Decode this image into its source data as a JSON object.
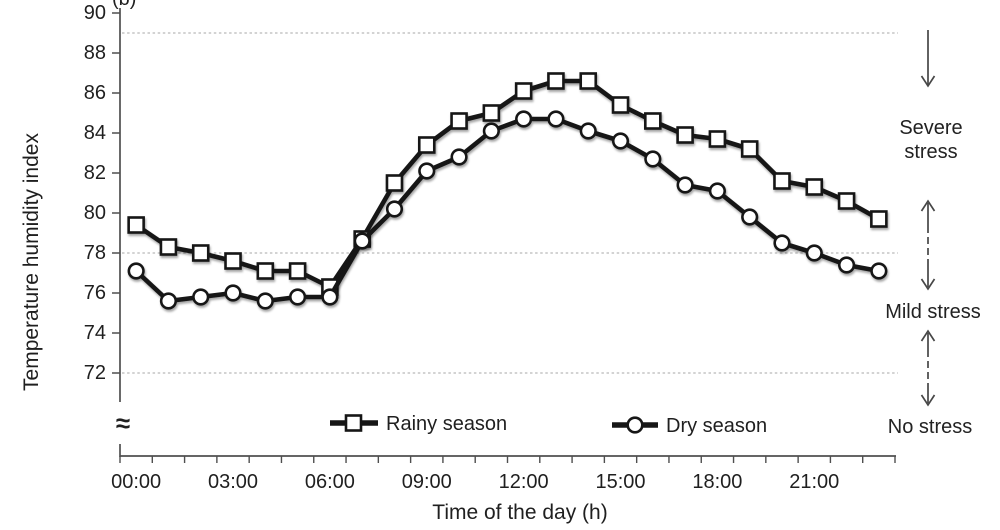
{
  "panel_label": "(b)",
  "y_axis": {
    "title": "Temperature humidity index",
    "tick_labels": [
      "90",
      "88",
      "86",
      "84",
      "82",
      "80",
      "78",
      "76",
      "74",
      "72"
    ],
    "break_symbol": "≈"
  },
  "x_axis": {
    "title": "Time of the day (h)",
    "labeled_ticks": [
      "00:00",
      "03:00",
      "06:00",
      "09:00",
      "12:00",
      "15:00",
      "18:00",
      "21:00"
    ]
  },
  "legend": {
    "items": [
      {
        "label": "Rainy season",
        "marker": "square"
      },
      {
        "label": "Dry season",
        "marker": "circle"
      }
    ]
  },
  "stress_annotations": [
    {
      "label": "Severe stress",
      "lines": [
        "Severe",
        "stress"
      ]
    },
    {
      "label": "Mild stress",
      "lines": [
        "Mild stress"
      ]
    },
    {
      "label": "No stress",
      "lines": [
        "No stress"
      ]
    }
  ],
  "colors": {
    "series": "#161616",
    "marker_fill": "#ffffff",
    "grid": "#b9b9b9",
    "axis": "#4f4f4f",
    "text": "#1f1f1f",
    "annotation": "#474747"
  },
  "chart_data": {
    "type": "line",
    "title": "",
    "xlabel": "Time of the day (h)",
    "ylabel": "Temperature humidity index",
    "x": [
      "00:00",
      "01:00",
      "02:00",
      "03:00",
      "04:00",
      "05:00",
      "06:00",
      "07:00",
      "08:00",
      "09:00",
      "10:00",
      "11:00",
      "12:00",
      "13:00",
      "14:00",
      "15:00",
      "16:00",
      "17:00",
      "18:00",
      "19:00",
      "20:00",
      "21:00",
      "22:00",
      "23:00"
    ],
    "series": [
      {
        "name": "Rainy season",
        "marker": "square",
        "values": [
          79.4,
          78.3,
          78.0,
          77.6,
          77.1,
          77.1,
          76.3,
          78.7,
          81.5,
          83.4,
          84.6,
          85.0,
          86.1,
          86.6,
          86.6,
          85.4,
          84.6,
          83.9,
          83.7,
          83.2,
          81.6,
          81.3,
          80.6,
          79.7
        ]
      },
      {
        "name": "Dry season",
        "marker": "circle",
        "values": [
          77.1,
          75.6,
          75.8,
          76.0,
          75.6,
          75.8,
          75.8,
          78.6,
          80.2,
          82.1,
          82.8,
          84.1,
          84.7,
          84.7,
          84.1,
          83.6,
          82.7,
          81.4,
          81.1,
          79.8,
          78.5,
          78.0,
          77.4,
          77.1
        ]
      }
    ],
    "ylim": [
      72,
      90
    ],
    "y_tick_step": 2,
    "axis_break_below_ymin": true,
    "reference_lines": [
      89,
      78,
      72
    ],
    "grid": "dotted horizontal reference lines only",
    "legend_position": "bottom inside plot",
    "right_zone_labels": [
      "Severe stress",
      "Mild stress",
      "No stress"
    ]
  }
}
